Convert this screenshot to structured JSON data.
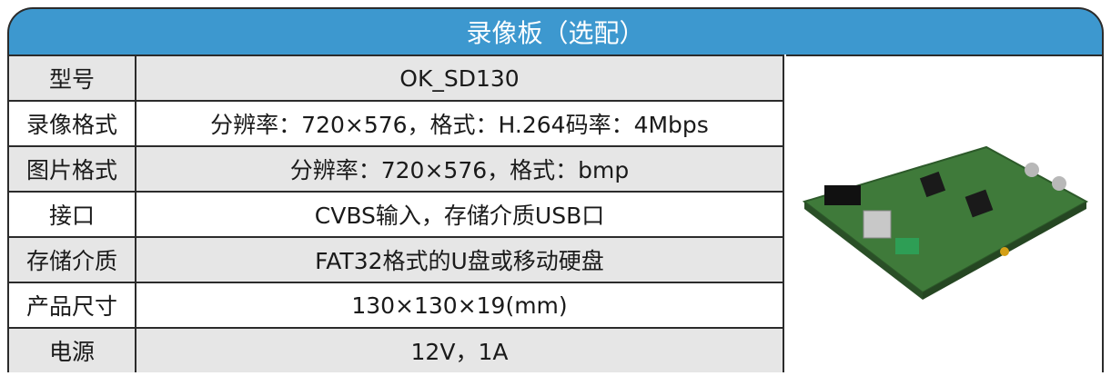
{
  "header": {
    "title": "录像板（选配）"
  },
  "table": {
    "rows": [
      [
        "型号",
        "OK_SD130"
      ],
      [
        "录像格式",
        "分辨率：720×576，格式：H.264码率：4Mbps"
      ],
      [
        "图片格式",
        "分辨率：720×576，格式：bmp"
      ],
      [
        "接口",
        "CVBS输入，存储介质USB口"
      ],
      [
        "存储介质",
        "FAT32格式的U盘或移动硬盘"
      ],
      [
        "产品尺寸",
        "130×130×19(mm)"
      ],
      [
        "电源",
        "12V，1A"
      ]
    ]
  }
}
